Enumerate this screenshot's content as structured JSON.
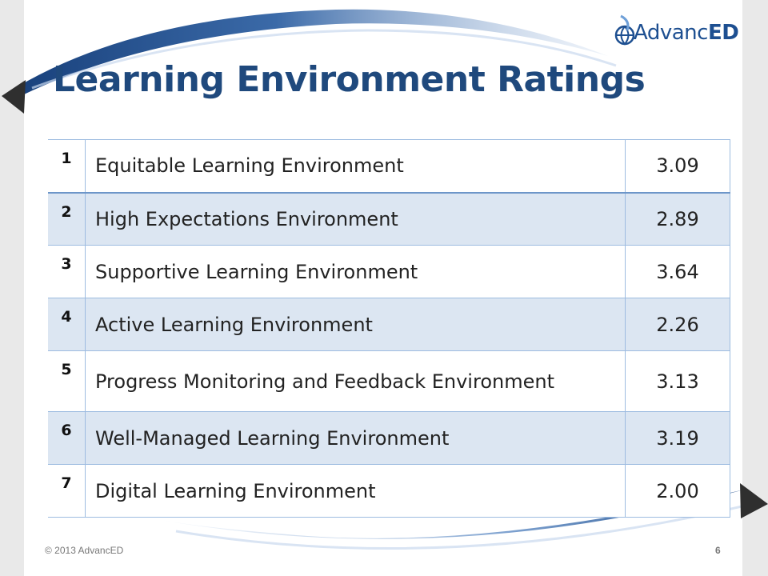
{
  "slide": {
    "title": "Learning Environment Ratings",
    "logo_text_regular": "Advanc",
    "logo_text_bold": "ED",
    "footer": "© 2013 AdvancED",
    "page_number": "6"
  },
  "table": {
    "rows": [
      {
        "num": "1",
        "name": "Equitable Learning Environment",
        "value": "3.09"
      },
      {
        "num": "2",
        "name": "High Expectations Environment",
        "value": "2.89"
      },
      {
        "num": "3",
        "name": "Supportive Learning Environment",
        "value": "3.64"
      },
      {
        "num": "4",
        "name": "Active Learning Environment",
        "value": "2.26"
      },
      {
        "num": "5",
        "name": "Progress Monitoring and Feedback Environment",
        "value": "3.13"
      },
      {
        "num": "6",
        "name": "Well-Managed Learning Environment",
        "value": "3.19"
      },
      {
        "num": "7",
        "name": "Digital Learning Environment",
        "value": "2.00"
      }
    ]
  },
  "colors": {
    "title": "#1f497d",
    "logo": "#1d4f91",
    "row_shade": "#dce6f2",
    "table_border": "#9dbbe0",
    "swoosh": "#1f4e8c"
  }
}
